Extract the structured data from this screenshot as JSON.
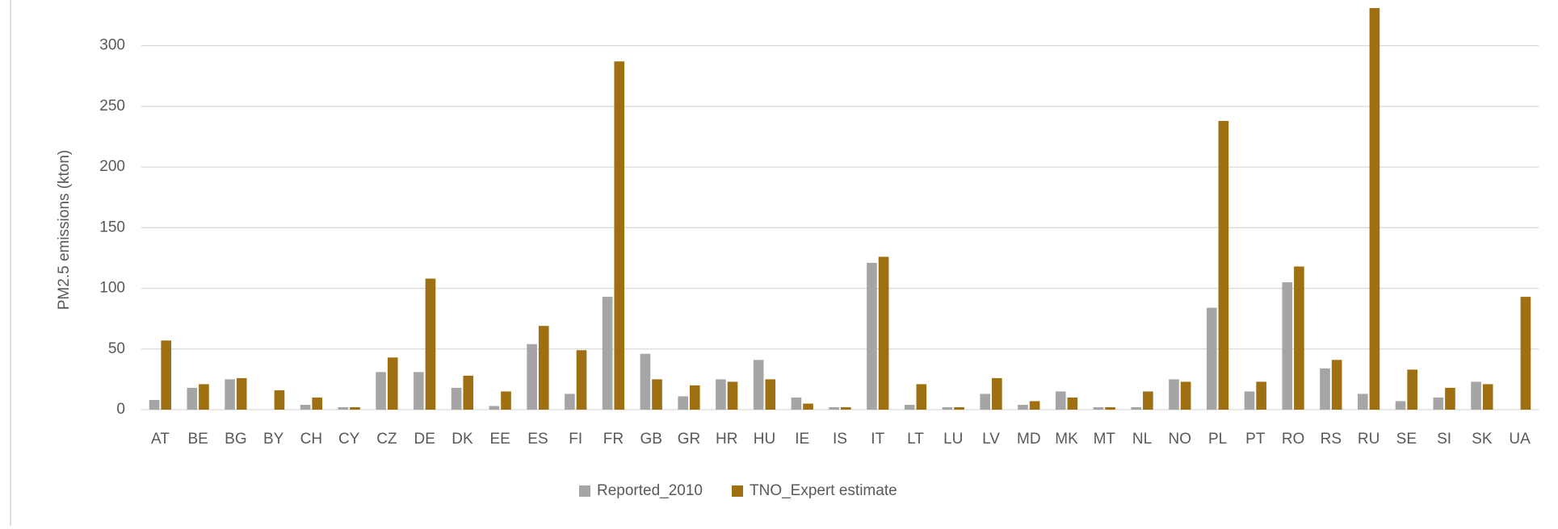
{
  "chart_data": {
    "type": "bar",
    "y_label": "PM2.5 emissions (kton)",
    "categories": [
      "AT",
      "BE",
      "BG",
      "BY",
      "CH",
      "CY",
      "CZ",
      "DE",
      "DK",
      "EE",
      "ES",
      "FI",
      "FR",
      "GB",
      "GR",
      "HR",
      "HU",
      "IE",
      "IS",
      "IT",
      "LT",
      "LU",
      "LV",
      "MD",
      "MK",
      "MT",
      "NL",
      "NO",
      "PL",
      "PT",
      "RO",
      "RS",
      "RU",
      "SE",
      "SI",
      "SK",
      "UA"
    ],
    "series": [
      {
        "name": "Reported_2010",
        "color": "#a5a5a5",
        "values": [
          8,
          18,
          25,
          null,
          4,
          2,
          31,
          31,
          18,
          3,
          54,
          13,
          93,
          46,
          11,
          25,
          41,
          10,
          2,
          121,
          4,
          2,
          13,
          4,
          15,
          2,
          2,
          25,
          84,
          15,
          105,
          34,
          13,
          7,
          10,
          23,
          null
        ]
      },
      {
        "name": "TNO_Expert estimate",
        "color": "#9e7012",
        "values": [
          57,
          21,
          26,
          16,
          10,
          2,
          43,
          108,
          28,
          15,
          69,
          49,
          287,
          25,
          20,
          23,
          25,
          5,
          2,
          126,
          21,
          2,
          26,
          7,
          10,
          2,
          15,
          23,
          238,
          23,
          118,
          41,
          335,
          33,
          18,
          21,
          93
        ]
      }
    ],
    "ylim": [
      0,
      331
    ],
    "yticks": [
      0,
      50,
      100,
      150,
      200,
      250,
      300
    ],
    "grid": true,
    "legend": "bottom"
  }
}
